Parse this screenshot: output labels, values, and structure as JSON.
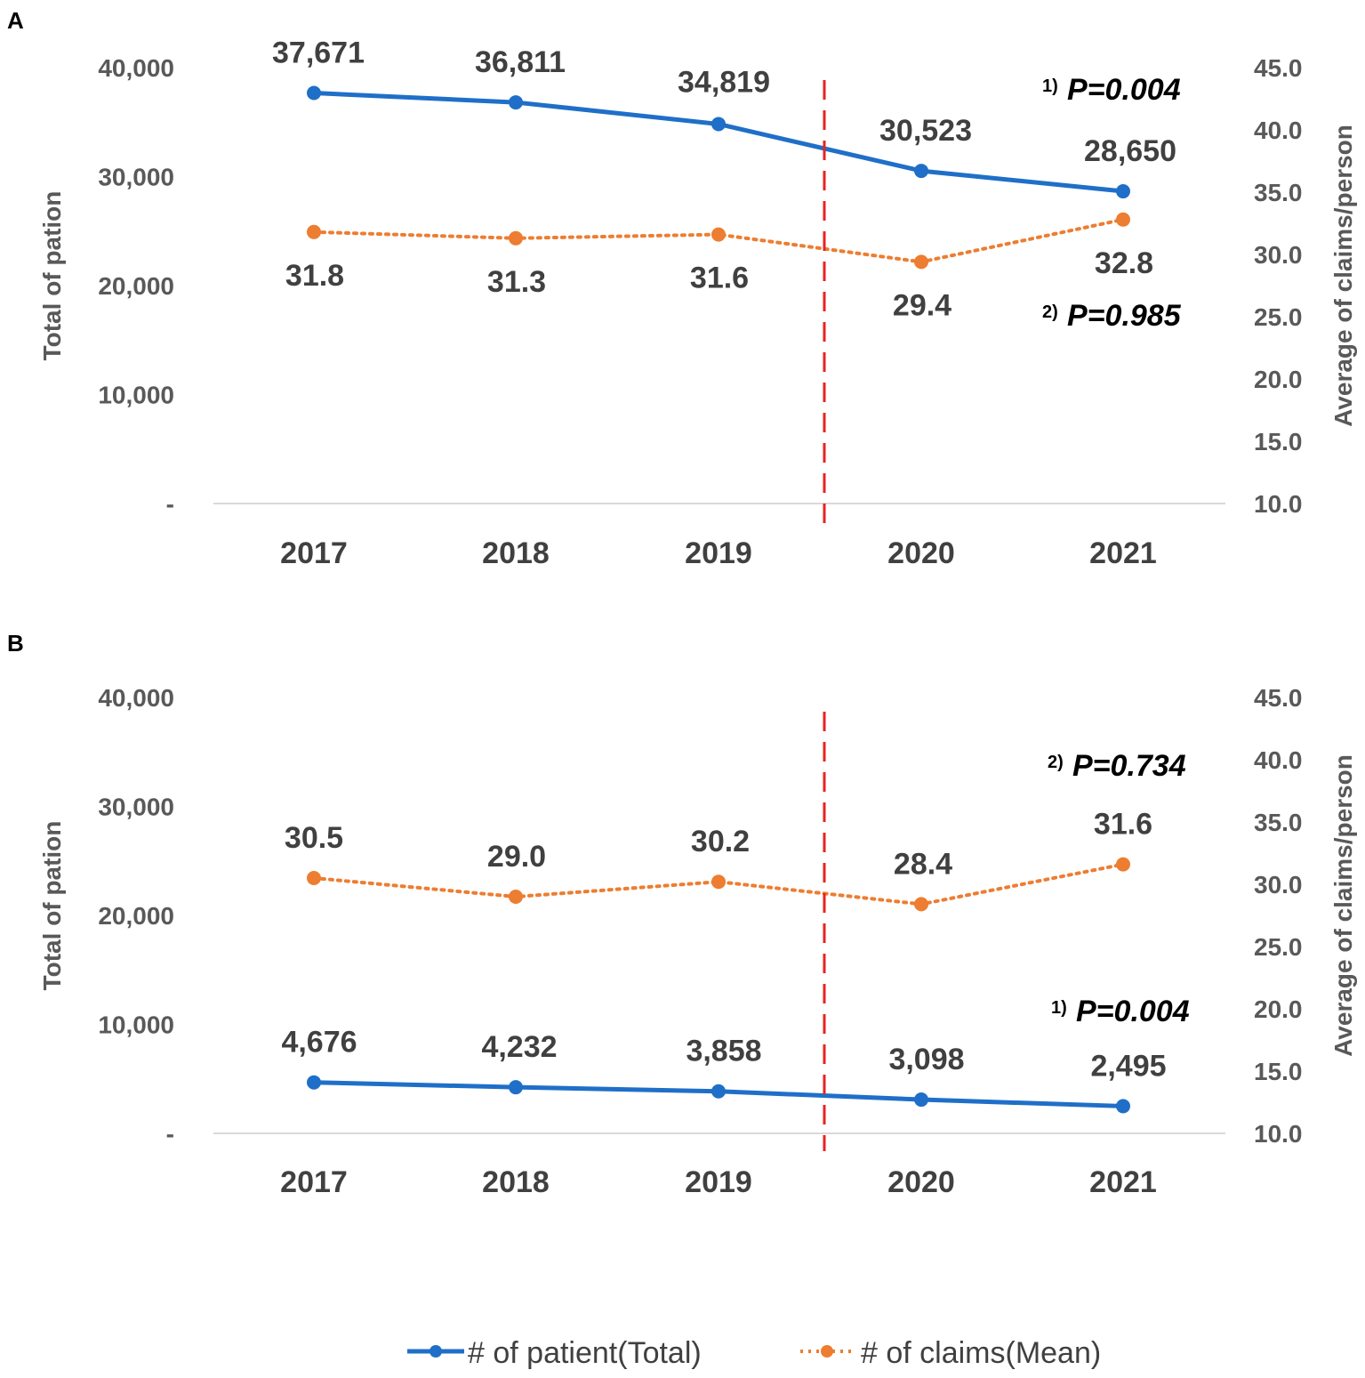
{
  "legend": {
    "patients": "# of patient(Total)",
    "claims": "# of claims(Mean)"
  },
  "colors": {
    "patients": "#1f6fc8",
    "claims": "#ed7d31",
    "divider": "#e8231f",
    "baseline": "#d9d9d9"
  },
  "chart_data": [
    {
      "panel": "A",
      "type": "line",
      "x": [
        "2017",
        "2018",
        "2019",
        "2020",
        "2021"
      ],
      "ylabel": "Total of pation",
      "y2label": "Average of claims/person",
      "ylim": [
        0,
        40000
      ],
      "y2lim": [
        10.0,
        45.0
      ],
      "yticks": [
        "-",
        "10,000",
        "20,000",
        "30,000",
        "40,000"
      ],
      "y2ticks": [
        "10.0",
        "15.0",
        "20.0",
        "25.0",
        "30.0",
        "35.0",
        "40.0",
        "45.0"
      ],
      "series": [
        {
          "name": "# of patient(Total)",
          "axis": "left",
          "values": [
            37671,
            36811,
            34819,
            30523,
            28650
          ],
          "labels": [
            "37,671",
            "36,811",
            "34,819",
            "30,523",
            "28,650"
          ]
        },
        {
          "name": "# of claims(Mean)",
          "axis": "right",
          "values": [
            31.8,
            31.3,
            31.6,
            29.4,
            32.8
          ],
          "labels": [
            "31.8",
            "31.3",
            "31.6",
            "29.4",
            "32.8"
          ]
        }
      ],
      "annotations": [
        {
          "sup": "1)",
          "text": "P=0.004"
        },
        {
          "sup": "2)",
          "text": "P=0.985"
        }
      ],
      "divider_between": [
        "2019",
        "2020"
      ]
    },
    {
      "panel": "B",
      "type": "line",
      "x": [
        "2017",
        "2018",
        "2019",
        "2020",
        "2021"
      ],
      "ylabel": "Total of pation",
      "y2label": "Average of claims/person",
      "ylim": [
        0,
        40000
      ],
      "y2lim": [
        10.0,
        45.0
      ],
      "yticks": [
        "-",
        "10,000",
        "20,000",
        "30,000",
        "40,000"
      ],
      "y2ticks": [
        "10.0",
        "15.0",
        "20.0",
        "25.0",
        "30.0",
        "35.0",
        "40.0",
        "45.0"
      ],
      "series": [
        {
          "name": "# of patient(Total)",
          "axis": "left",
          "values": [
            4676,
            4232,
            3858,
            3098,
            2495
          ],
          "labels": [
            "4,676",
            "4,232",
            "3,858",
            "3,098",
            "2,495"
          ]
        },
        {
          "name": "# of claims(Mean)",
          "axis": "right",
          "values": [
            30.5,
            29.0,
            30.2,
            28.4,
            31.6
          ],
          "labels": [
            "30.5",
            "29.0",
            "30.2",
            "28.4",
            "31.6"
          ]
        }
      ],
      "annotations": [
        {
          "sup": "2)",
          "text": "P=0.734"
        },
        {
          "sup": "1)",
          "text": "P=0.004"
        }
      ],
      "divider_between": [
        "2019",
        "2020"
      ]
    }
  ]
}
